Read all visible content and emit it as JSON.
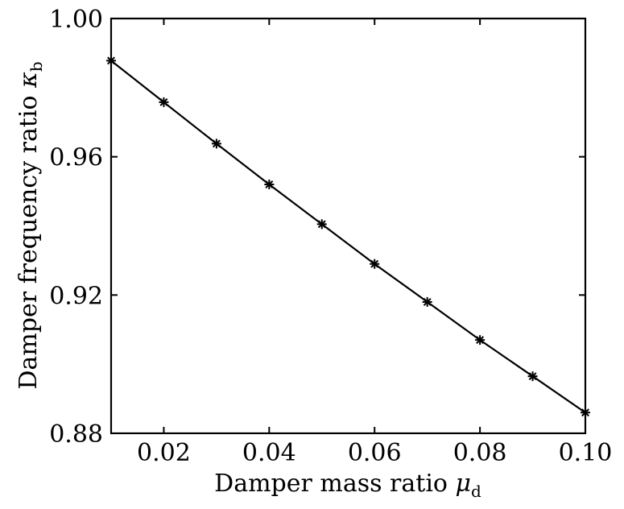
{
  "chart_data": {
    "type": "line",
    "title": "",
    "xlabel": {
      "text": "Damper mass ratio ",
      "symbol": "μ",
      "subscript": "d"
    },
    "ylabel": {
      "text": "Damper frequency ratio ",
      "symbol": "κ",
      "subscript": "b"
    },
    "xlim": [
      0.01,
      0.1
    ],
    "ylim": [
      0.88,
      1.0
    ],
    "xticks": [
      0.02,
      0.04,
      0.06,
      0.08,
      0.1
    ],
    "yticks": [
      0.88,
      0.92,
      0.96,
      1.0
    ],
    "xtick_labels": [
      "0.02",
      "0.04",
      "0.06",
      "0.08",
      "0.10"
    ],
    "ytick_labels": [
      "0.88",
      "0.92",
      "0.96",
      "1.00"
    ],
    "grid": false,
    "legend": null,
    "marker": "asterisk",
    "color": "#000000",
    "series": [
      {
        "x": [
          0.01,
          0.02,
          0.03,
          0.04,
          0.05,
          0.06,
          0.07,
          0.08,
          0.09,
          0.1
        ],
        "y": [
          0.9878,
          0.9758,
          0.9638,
          0.952,
          0.9405,
          0.929,
          0.918,
          0.907,
          0.8965,
          0.886
        ]
      }
    ]
  }
}
